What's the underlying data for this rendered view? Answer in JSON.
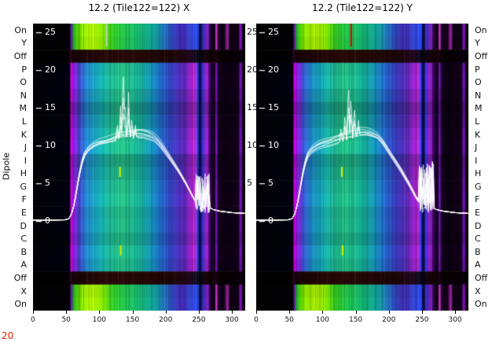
{
  "panels": [
    {
      "title": "12.2 (Tile122=122) X"
    },
    {
      "title": "12.2 (Tile122=122) Y"
    }
  ],
  "left_axis_label": "Dipole",
  "footer": {
    "corner_label": "20",
    "corner_color": "#dd2200"
  },
  "x_ticks": [
    0,
    50,
    100,
    150,
    200,
    250,
    300
  ],
  "y_ticks": [
    25,
    20,
    15,
    10,
    5,
    0
  ],
  "gutter_ticks": [
    25,
    20,
    15,
    10,
    5
  ],
  "chart_data": {
    "type": "heatmap+line",
    "x_range": [
      0,
      320
    ],
    "line_y_range": [
      0,
      26
    ],
    "line_y_ticks": [
      25,
      20,
      15,
      10,
      5,
      0
    ],
    "x_ticks": [
      0,
      50,
      100,
      150,
      200,
      250,
      300
    ],
    "row_axis_label": "Dipole",
    "line_color": "#ffffff",
    "n_traces": 8,
    "rows": [
      {
        "label": "On",
        "type": "on",
        "shade": 1.0
      },
      {
        "label": "Y",
        "type": "on",
        "shade": 0.96
      },
      {
        "label": "Off",
        "type": "off",
        "shade": 1.0
      },
      {
        "label": "P",
        "type": "dipole",
        "shade": 1.0
      },
      {
        "label": "O",
        "type": "dipole",
        "shade": 1.06
      },
      {
        "label": "N",
        "type": "dipole",
        "shade": 0.94
      },
      {
        "label": "M",
        "type": "dipole",
        "shade": 0.78
      },
      {
        "label": "L",
        "type": "dipole",
        "shade": 0.9
      },
      {
        "label": "K",
        "type": "dipole",
        "shade": 1.02
      },
      {
        "label": "J",
        "type": "dipole",
        "shade": 1.08
      },
      {
        "label": "I",
        "type": "dipole",
        "shade": 0.84
      },
      {
        "label": "H",
        "type": "dipole",
        "shade": 0.92
      },
      {
        "label": "G",
        "type": "dipole",
        "shade": 1.0
      },
      {
        "label": "F",
        "type": "dipole",
        "shade": 1.06
      },
      {
        "label": "E",
        "type": "dipole",
        "shade": 0.96
      },
      {
        "label": "D",
        "type": "dipole",
        "shade": 1.0
      },
      {
        "label": "C",
        "type": "dipole",
        "shade": 0.9
      },
      {
        "label": "B",
        "type": "dipole",
        "shade": 1.04
      },
      {
        "label": "A",
        "type": "dipole",
        "shade": 0.96
      },
      {
        "label": "Off",
        "type": "off",
        "shade": 1.0
      },
      {
        "label": "X",
        "type": "on",
        "shade": 0.95
      },
      {
        "label": "On",
        "type": "on",
        "shade": 1.0
      }
    ],
    "row_type_gradients": {
      "on": [
        [
          0,
          "#020202"
        ],
        [
          54,
          "#030306"
        ],
        [
          55.5,
          "#030306"
        ],
        [
          57,
          "#6a00b0"
        ],
        [
          61,
          "#20b030"
        ],
        [
          68,
          "#66e400"
        ],
        [
          76,
          "#9cf400"
        ],
        [
          92,
          "#b4fa00"
        ],
        [
          104,
          "#8cec00"
        ],
        [
          118,
          "#3cd820"
        ],
        [
          134,
          "#24cc48"
        ],
        [
          152,
          "#1cc468"
        ],
        [
          170,
          "#14b488"
        ],
        [
          186,
          "#12a0a4"
        ],
        [
          198,
          "#2478c8"
        ],
        [
          210,
          "#3048c0"
        ],
        [
          224,
          "#4428b4"
        ],
        [
          236,
          "#3846d4"
        ],
        [
          246,
          "#3050ff"
        ],
        [
          249,
          "#2c48f0"
        ],
        [
          250.5,
          "#0e1058"
        ],
        [
          253.5,
          "#0a0c38"
        ],
        [
          255.5,
          "#2c34cc"
        ],
        [
          260,
          "#6a24c4"
        ],
        [
          264,
          "#8424c8"
        ],
        [
          267,
          "#34004e"
        ],
        [
          270,
          "#12001c"
        ],
        [
          274.5,
          "#0e0014"
        ],
        [
          275.5,
          "#c22cc2"
        ],
        [
          277.5,
          "#c22cc2"
        ],
        [
          279,
          "#1c0026"
        ],
        [
          288,
          "#0a000e"
        ],
        [
          294,
          "#b028b4"
        ],
        [
          296,
          "#120016"
        ],
        [
          310.5,
          "#0e0012"
        ],
        [
          311.5,
          "#7a10b2"
        ],
        [
          314.5,
          "#7a10b2"
        ],
        [
          316,
          "#0a000e"
        ],
        [
          320,
          "#020202"
        ]
      ],
      "dipole": [
        [
          0,
          "#020206"
        ],
        [
          54,
          "#020210"
        ],
        [
          55.5,
          "#020210"
        ],
        [
          57,
          "#cc00dd"
        ],
        [
          62,
          "#921ee0"
        ],
        [
          68,
          "#5a42dc"
        ],
        [
          76,
          "#2a74d4"
        ],
        [
          88,
          "#1c9cc8"
        ],
        [
          102,
          "#16aeb2"
        ],
        [
          116,
          "#1cba98"
        ],
        [
          132,
          "#24c086"
        ],
        [
          148,
          "#1eba8e"
        ],
        [
          164,
          "#16ae9e"
        ],
        [
          178,
          "#1694b8"
        ],
        [
          190,
          "#1e74cc"
        ],
        [
          203,
          "#2e4ec8"
        ],
        [
          216,
          "#4434bc"
        ],
        [
          228,
          "#5c28b6"
        ],
        [
          237,
          "#9622cc"
        ],
        [
          243,
          "#c028d4"
        ],
        [
          246.5,
          "#8838e8"
        ],
        [
          248.5,
          "#2a40f4"
        ],
        [
          250.5,
          "#0a0a4e"
        ],
        [
          253.5,
          "#0e1064"
        ],
        [
          255.5,
          "#3c38e4"
        ],
        [
          259,
          "#7c2ad8"
        ],
        [
          263,
          "#a226d2"
        ],
        [
          266.5,
          "#46006e"
        ],
        [
          270,
          "#1c0030"
        ],
        [
          274.5,
          "#140020"
        ],
        [
          275.5,
          "#6914ac"
        ],
        [
          277.5,
          "#6914ac"
        ],
        [
          279,
          "#16001f"
        ],
        [
          290,
          "#0a0010"
        ],
        [
          298,
          "#0e0014"
        ],
        [
          310.5,
          "#12001a"
        ],
        [
          311.5,
          "#6a10a8"
        ],
        [
          314.5,
          "#6a10a8"
        ],
        [
          316,
          "#0c0012"
        ],
        [
          320,
          "#020206"
        ]
      ],
      "off": [
        [
          0,
          "#000000"
        ],
        [
          54,
          "#020000"
        ],
        [
          56,
          "#2a0426"
        ],
        [
          60,
          "#160404"
        ],
        [
          90,
          "#220707"
        ],
        [
          130,
          "#2a0909"
        ],
        [
          170,
          "#240808"
        ],
        [
          210,
          "#1c0606"
        ],
        [
          240,
          "#220620"
        ],
        [
          246,
          "#101024"
        ],
        [
          250,
          "#06040e"
        ],
        [
          254,
          "#0a0612"
        ],
        [
          258,
          "#1c0616"
        ],
        [
          262,
          "#180505"
        ],
        [
          268,
          "#0c0202"
        ],
        [
          277,
          "#1c0212"
        ],
        [
          280,
          "#060001"
        ],
        [
          310.5,
          "#060008"
        ],
        [
          312,
          "#120016"
        ],
        [
          315,
          "#040004"
        ],
        [
          320,
          "#000000"
        ]
      ]
    },
    "base_curve": [
      [
        0,
        0.12
      ],
      [
        30,
        0.12
      ],
      [
        48,
        0.15
      ],
      [
        54,
        0.3
      ],
      [
        58,
        0.9
      ],
      [
        62,
        2.2
      ],
      [
        66,
        4.2
      ],
      [
        70,
        6.2
      ],
      [
        74,
        7.8
      ],
      [
        78,
        8.8
      ],
      [
        84,
        9.5
      ],
      [
        92,
        10.0
      ],
      [
        100,
        10.3
      ],
      [
        110,
        10.5
      ],
      [
        120,
        10.8
      ],
      [
        130,
        11.1
      ],
      [
        140,
        11.3
      ],
      [
        150,
        11.5
      ],
      [
        158,
        11.7
      ],
      [
        166,
        11.7
      ],
      [
        174,
        11.5
      ],
      [
        182,
        11.2
      ],
      [
        188,
        10.7
      ],
      [
        194,
        10.0
      ],
      [
        200,
        9.2
      ],
      [
        206,
        8.4
      ],
      [
        212,
        7.6
      ],
      [
        218,
        6.8
      ],
      [
        224,
        5.9
      ],
      [
        230,
        5.0
      ],
      [
        236,
        4.0
      ],
      [
        242,
        3.0
      ],
      [
        246,
        2.5
      ],
      [
        266,
        1.8
      ],
      [
        272,
        1.5
      ],
      [
        282,
        1.3
      ],
      [
        300,
        1.1
      ],
      [
        320,
        1.0
      ]
    ],
    "panels": [
      {
        "name": "X",
        "seed": 7,
        "spikes": [
          [
            127,
            2.6
          ],
          [
            132,
            4.5
          ],
          [
            136,
            10.8
          ],
          [
            139,
            5.5
          ],
          [
            144,
            6.2
          ],
          [
            149,
            3.2
          ],
          [
            154,
            2.2
          ]
        ],
        "noise_region": {
          "x0": 245,
          "x1": 266,
          "base": 2.2,
          "amp": 5.2
        },
        "markers": [
          {
            "x": 110,
            "y0": 0.0,
            "y1": 0.08,
            "color": "#cfcfcf",
            "w": 1.5
          },
          {
            "x": 130,
            "y0": 0.499,
            "y1": 0.534,
            "color": "#d4f000",
            "w": 2
          },
          {
            "x": 131,
            "y0": 0.773,
            "y1": 0.808,
            "color": "#d4f000",
            "w": 2
          }
        ]
      },
      {
        "name": "Y",
        "seed": 13,
        "spikes": [
          [
            128,
            2.2
          ],
          [
            134,
            4.0
          ],
          [
            139,
            8.4
          ],
          [
            143,
            6.4
          ],
          [
            148,
            4.6
          ],
          [
            154,
            2.6
          ]
        ],
        "noise_region": {
          "x0": 245,
          "x1": 268,
          "base": 2.2,
          "amp": 6.8
        },
        "markers": [
          {
            "x": 142,
            "y0": 0.0,
            "y1": 0.08,
            "color": "#dd0000",
            "w": 2
          },
          {
            "x": 128,
            "y0": 0.499,
            "y1": 0.534,
            "color": "#d4f000",
            "w": 2
          },
          {
            "x": 129,
            "y0": 0.773,
            "y1": 0.808,
            "color": "#d4f000",
            "w": 2
          }
        ]
      }
    ]
  }
}
